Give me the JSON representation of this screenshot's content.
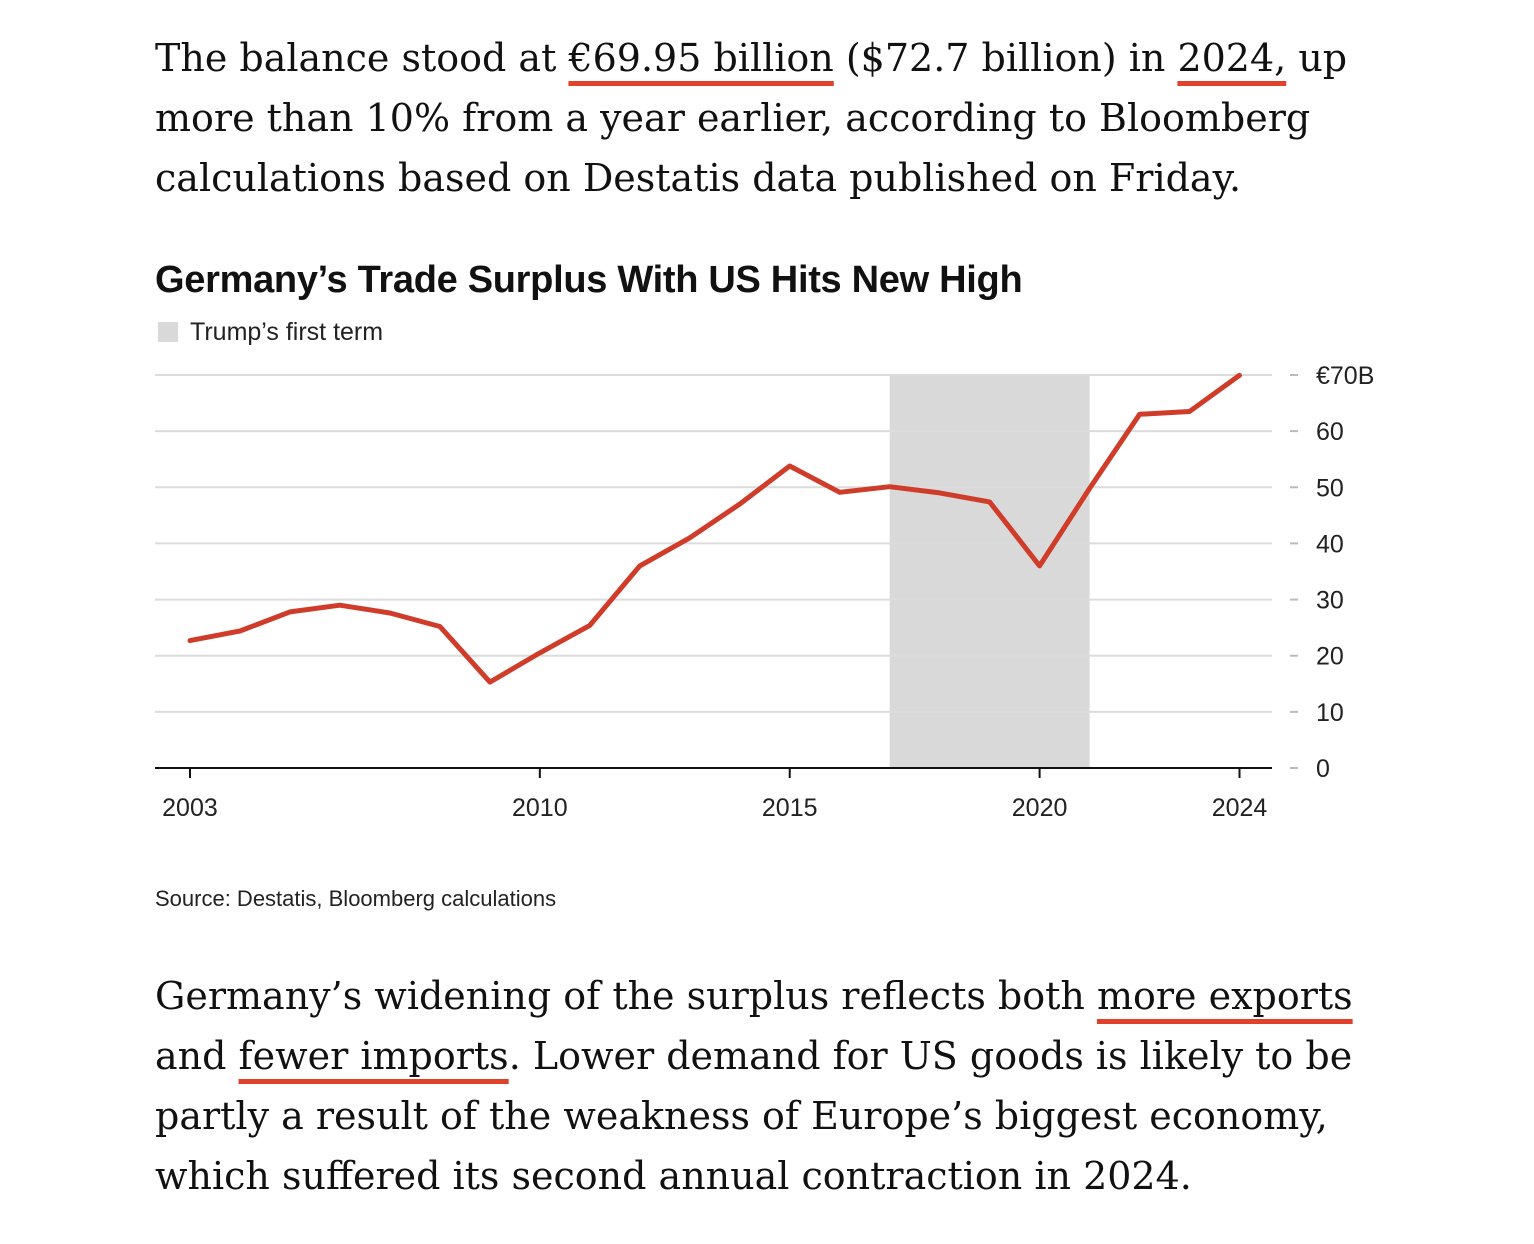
{
  "article": {
    "para1": {
      "p1": "The balance stood at ",
      "u1": "€69.95 billion",
      "p2": " ($72.7 billion) in ",
      "u2": "2024,",
      "p3": " up more than 10% from a year earlier, according to Bloomberg calculations based on Destatis data published on Friday."
    },
    "para2": {
      "p1": "Germany’s widening of the surplus reflects both ",
      "u1": "more exports",
      "p2": " and ",
      "u2": "fewer imports",
      "p3": ". Lower demand for US goods is likely to be partly a result of the weakness of Europe’s biggest economy, which suffered its second annual contraction in 2024."
    }
  },
  "chart_data": {
    "type": "line",
    "title": "Germany’s Trade Surplus With US Hits New High",
    "source": "Source: Destatis, Bloomberg calculations",
    "legend": [
      {
        "label": "Trump’s first term",
        "color": "#d9d9d9"
      }
    ],
    "shaded_region": {
      "label": "Trump’s first term",
      "from": 2017,
      "to": 2021
    },
    "x": [
      2003,
      2004,
      2005,
      2006,
      2007,
      2008,
      2009,
      2010,
      2011,
      2012,
      2013,
      2014,
      2015,
      2016,
      2017,
      2018,
      2019,
      2020,
      2021,
      2022,
      2023,
      2024
    ],
    "series": [
      {
        "values": [
          22.7,
          24.4,
          27.8,
          29.0,
          27.6,
          25.2,
          15.3,
          20.5,
          25.4,
          36.0,
          41.0,
          47.0,
          53.8,
          49.1,
          50.1,
          49.0,
          47.4,
          36.0,
          49.8,
          63.0,
          63.5,
          69.95
        ],
        "color": "#d03c2a"
      }
    ],
    "xticks": [
      2003,
      2010,
      2015,
      2020,
      2024
    ],
    "xtick_labels": [
      "2003",
      "2010",
      "2015",
      "2020",
      "2024"
    ],
    "yticks": [
      0,
      10,
      20,
      30,
      40,
      50,
      60,
      70
    ],
    "ytick_labels": [
      "0",
      "10",
      "20",
      "30",
      "40",
      "50",
      "60",
      "€70B"
    ],
    "ylim": [
      0,
      70
    ],
    "xlim": [
      2002.3,
      2024.65
    ],
    "y_axis_side": "right",
    "grid": true
  }
}
